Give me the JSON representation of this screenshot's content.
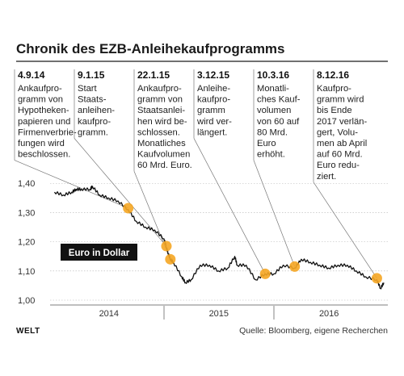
{
  "chart_data": {
    "type": "line",
    "title": "Chronik des EZB-Anleihekaufprogramms",
    "legend_label": "Euro in Dollar",
    "y_ticks": [
      "1,40",
      "1,30",
      "1,20",
      "1,10",
      "1,00"
    ],
    "ylim": [
      1.0,
      1.42
    ],
    "x_labels": [
      "2014",
      "2015",
      "2016"
    ],
    "x_range": [
      "2014-01-01",
      "2016-12-31"
    ],
    "grid": "horizontal",
    "series": [
      {
        "color": "#111111",
        "x": [
          "2014-01-02",
          "2014-02-01",
          "2014-03-01",
          "2014-03-15",
          "2014-04-01",
          "2014-05-01",
          "2014-05-08",
          "2014-06-01",
          "2014-07-01",
          "2014-08-01",
          "2014-09-04",
          "2014-10-01",
          "2014-11-01",
          "2014-12-01",
          "2015-01-01",
          "2015-01-09",
          "2015-01-15",
          "2015-01-22",
          "2015-02-01",
          "2015-03-01",
          "2015-03-13",
          "2015-04-01",
          "2015-05-01",
          "2015-06-01",
          "2015-07-01",
          "2015-08-01",
          "2015-08-24",
          "2015-09-01",
          "2015-10-01",
          "2015-11-01",
          "2015-12-03",
          "2016-01-01",
          "2016-02-01",
          "2016-03-10",
          "2016-04-01",
          "2016-05-01",
          "2016-06-01",
          "2016-07-01",
          "2016-08-01",
          "2016-09-01",
          "2016-10-01",
          "2016-11-01",
          "2016-12-08",
          "2016-12-20",
          "2016-12-31"
        ],
        "values": [
          1.37,
          1.36,
          1.37,
          1.38,
          1.38,
          1.38,
          1.39,
          1.36,
          1.35,
          1.34,
          1.31,
          1.27,
          1.25,
          1.24,
          1.21,
          1.18,
          1.16,
          1.14,
          1.13,
          1.08,
          1.06,
          1.07,
          1.12,
          1.12,
          1.1,
          1.11,
          1.15,
          1.12,
          1.12,
          1.07,
          1.09,
          1.09,
          1.12,
          1.11,
          1.14,
          1.13,
          1.12,
          1.11,
          1.12,
          1.12,
          1.1,
          1.08,
          1.07,
          1.04,
          1.06
        ]
      }
    ],
    "events": [
      {
        "date": "4.9.14",
        "x": "2014-09-04",
        "value": 1.315,
        "lines": [
          "Ankaufpro-",
          "gramm von",
          "Hypotheken-",
          "papieren und",
          "Firmenverbrie-",
          "fungen wird",
          "beschlossen."
        ]
      },
      {
        "date": "9.1.15",
        "x": "2015-01-09",
        "value": 1.185,
        "lines": [
          "Start",
          "Staats-",
          "anleihen-",
          "kaufpro-",
          "gramm."
        ]
      },
      {
        "date": "22.1.15",
        "x": "2015-01-22",
        "value": 1.14,
        "lines": [
          "Ankaufpro-",
          "gramm von",
          "Staatsanlei-",
          "hen wird be-",
          "schlossen.",
          "Monatliches",
          "Kaufvolumen",
          "60 Mrd. Euro."
        ]
      },
      {
        "date": "3.12.15",
        "x": "2015-12-03",
        "value": 1.09,
        "lines": [
          "Anleihe-",
          "kaufpro-",
          "gramm",
          "wird ver-",
          "längert."
        ]
      },
      {
        "date": "10.3.16",
        "x": "2016-03-10",
        "value": 1.115,
        "lines": [
          "Monatli-",
          "ches Kauf-",
          "volumen",
          "von 60 auf",
          "80 Mrd.",
          "Euro",
          "erhöht."
        ]
      },
      {
        "date": "8.12.16",
        "x": "2016-12-08",
        "value": 1.075,
        "lines": [
          "Kaufpro-",
          "gramm wird",
          "bis Ende",
          "2017 verlän-",
          "gert, Volu-",
          "men ab April",
          "auf 60 Mrd.",
          "Euro redu-",
          "ziert."
        ]
      }
    ]
  },
  "footer": {
    "brand": "WELT",
    "source": "Quelle: Bloomberg, eigene Recherchen"
  },
  "colors": {
    "accent": "#f5a623",
    "line": "#111111",
    "grid": "#b5b5b5",
    "legend_bg": "#111111"
  }
}
